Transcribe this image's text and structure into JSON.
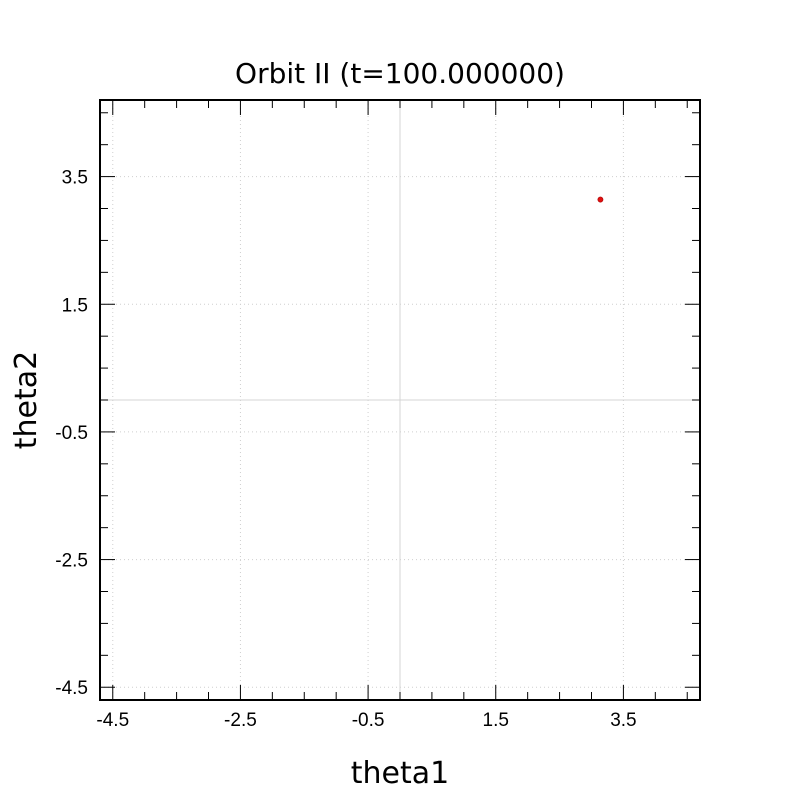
{
  "chart_data": {
    "type": "scatter",
    "title": "Orbit II (t=100.000000)",
    "xlabel": "theta1",
    "ylabel": "theta2",
    "xlim": [
      -4.7,
      4.7
    ],
    "ylim": [
      -4.7,
      4.7
    ],
    "xticks": [
      -4.5,
      -2.5,
      -0.5,
      1.5,
      3.5
    ],
    "yticks": [
      -4.5,
      -2.5,
      -0.5,
      1.5,
      3.5
    ],
    "x_tick_labels": [
      "-4.5",
      "-2.5",
      "-0.5",
      "1.5",
      "3.5"
    ],
    "y_tick_labels": [
      "-4.5",
      "-2.5",
      "-0.5",
      "1.5",
      "3.5"
    ],
    "grid": true,
    "zero_lines": true,
    "series": [
      {
        "color": "#e01010",
        "points": [
          [
            3.14,
            3.14
          ]
        ]
      }
    ]
  }
}
